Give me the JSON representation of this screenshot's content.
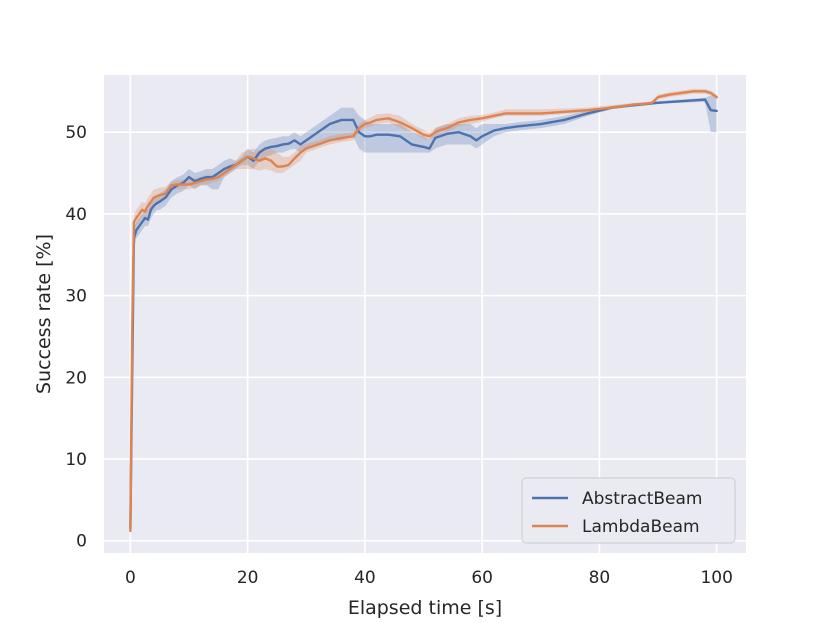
{
  "chart_data": {
    "type": "line",
    "title": "",
    "xlabel": "Elapsed time [s]",
    "ylabel": "Success rate [%]",
    "xlim": [
      -4.5,
      105
    ],
    "ylim": [
      -1.5,
      57
    ],
    "xticks": [
      0,
      20,
      40,
      60,
      80,
      100
    ],
    "yticks": [
      0,
      10,
      20,
      30,
      40,
      50
    ],
    "grid": true,
    "background_color": "#eaeaf2",
    "legend_position": "lower-right",
    "series": [
      {
        "name": "AbstractBeam",
        "color": "#4c72b0",
        "x": [
          0,
          0.3,
          0.6,
          1,
          1.5,
          2,
          2.5,
          3,
          3.5,
          4,
          4.5,
          5,
          6,
          7,
          8,
          9,
          10,
          11,
          12,
          13,
          14,
          15,
          16,
          17,
          18,
          19,
          20,
          21,
          22,
          23,
          24,
          25,
          26,
          27,
          28,
          29,
          30,
          32,
          34,
          36,
          38,
          39,
          40,
          41,
          42,
          44,
          46,
          48,
          50,
          51,
          52,
          54,
          56,
          58,
          59,
          60,
          62,
          64,
          66,
          70,
          74,
          78,
          82,
          86,
          90,
          94,
          98,
          99,
          100
        ],
        "y": [
          1.5,
          20,
          37,
          38,
          38.5,
          39,
          39.5,
          39.3,
          40.5,
          41,
          41.3,
          41.5,
          42,
          43,
          43.5,
          43.8,
          44.5,
          44,
          44.3,
          44.5,
          44.5,
          45,
          45.5,
          45.8,
          46,
          46.5,
          47,
          46.5,
          47.5,
          48,
          48.2,
          48.3,
          48.5,
          48.6,
          49,
          48.5,
          49,
          50,
          51,
          51.5,
          51.5,
          50,
          49.5,
          49.5,
          49.7,
          49.7,
          49.5,
          48.5,
          48.2,
          48,
          49.3,
          49.8,
          50,
          49.5,
          49,
          49.5,
          50.2,
          50.5,
          50.7,
          51,
          51.5,
          52.3,
          53,
          53.3,
          53.6,
          53.8,
          54,
          52.7,
          52.6
        ],
        "band_lower": [
          0,
          14,
          35.5,
          37,
          37.5,
          38,
          38.5,
          38.5,
          39.5,
          40,
          40.5,
          40.5,
          41,
          42,
          42.5,
          42.8,
          43.5,
          43,
          43.5,
          43.5,
          43,
          43,
          44.5,
          45,
          45.5,
          46,
          46,
          45.5,
          46.5,
          47,
          47.2,
          47.5,
          47.5,
          47.8,
          48,
          47.5,
          48,
          48.5,
          49,
          49,
          49.5,
          48,
          47.5,
          47.5,
          47.5,
          47.5,
          47.5,
          47.5,
          47.5,
          47.5,
          48,
          48.5,
          48.5,
          48.5,
          48,
          48.5,
          49.5,
          50,
          50.2,
          50.5,
          51,
          52,
          52.8,
          53.2,
          53.5,
          53.6,
          53.7,
          50,
          50
        ],
        "band_upper": [
          3,
          25,
          38.5,
          39,
          39.5,
          40,
          40.5,
          40.5,
          41.5,
          42,
          42.3,
          42.5,
          43,
          44,
          44.5,
          44.8,
          45.5,
          45,
          45.2,
          45.5,
          45.5,
          46,
          46.5,
          46.8,
          46.5,
          47,
          48,
          47.5,
          48.5,
          49,
          49.2,
          49.3,
          49.5,
          49.5,
          50,
          49.5,
          50,
          51,
          52,
          53,
          53,
          52,
          51.5,
          51,
          51,
          51,
          51,
          50,
          49.5,
          49,
          50.5,
          51,
          51,
          51,
          50.5,
          51,
          51,
          51,
          51.2,
          51.5,
          52,
          52.6,
          53.2,
          53.5,
          53.8,
          54,
          54.2,
          54.5,
          54.5
        ]
      },
      {
        "name": "LambdaBeam",
        "color": "#dd8452",
        "x": [
          0,
          0.3,
          0.6,
          1,
          1.5,
          2,
          2.5,
          3,
          3.5,
          4,
          5,
          6,
          7,
          8,
          9,
          10,
          11,
          12,
          13,
          14,
          15,
          16,
          17,
          18,
          19,
          20,
          21,
          22,
          23,
          24,
          25,
          26,
          27,
          28,
          29,
          30,
          32,
          34,
          36,
          38,
          39,
          40,
          41,
          42,
          44,
          46,
          48,
          50,
          51,
          52,
          53,
          54,
          56,
          58,
          60,
          62,
          64,
          66,
          70,
          74,
          78,
          82,
          86,
          88,
          89,
          90,
          92,
          94,
          96,
          98,
          99,
          100
        ],
        "y": [
          1.2,
          25,
          39,
          39.5,
          40,
          40.5,
          40.3,
          41,
          41.5,
          42,
          42.3,
          42.5,
          43.5,
          43.6,
          43.6,
          43.6,
          43.8,
          44,
          44.2,
          44.3,
          44.5,
          45,
          45.5,
          46,
          46.5,
          47,
          46.8,
          46.5,
          46.8,
          46.5,
          45.8,
          45.8,
          46,
          46.8,
          47.5,
          48,
          48.5,
          49,
          49.3,
          49.5,
          50.5,
          51,
          51.2,
          51.5,
          51.7,
          51.2,
          50.5,
          49.7,
          49.5,
          50,
          50.3,
          50.5,
          51.2,
          51.5,
          51.7,
          52,
          52.3,
          52.3,
          52.3,
          52.5,
          52.7,
          53,
          53.4,
          53.5,
          53.6,
          54.3,
          54.6,
          54.8,
          55,
          55,
          54.8,
          54.3
        ],
        "band_lower": [
          0,
          20,
          38,
          38.5,
          39,
          39.5,
          39.5,
          40,
          40.5,
          41,
          41.5,
          42,
          43,
          43,
          43,
          43,
          43.2,
          43.5,
          43.6,
          43.8,
          44,
          44.5,
          45,
          45.5,
          45.5,
          45.5,
          45.5,
          45.3,
          45.5,
          45.3,
          45,
          45,
          45.5,
          46,
          46.5,
          47.5,
          48,
          48.5,
          48.8,
          49,
          50,
          50.5,
          50.7,
          51,
          51.2,
          50.5,
          50,
          49.2,
          49,
          49.5,
          49.8,
          50,
          50.7,
          51,
          51.3,
          51.7,
          52,
          52,
          52,
          52.2,
          52.4,
          52.8,
          53.2,
          53.3,
          53.4,
          54,
          54.3,
          54.5,
          54.7,
          54.7,
          54.5,
          54
        ],
        "band_upper": [
          2.5,
          30,
          40,
          40.5,
          41,
          41.5,
          41.3,
          42,
          42.5,
          43,
          43.2,
          43.3,
          44,
          44.2,
          44.2,
          44.2,
          44.4,
          44.5,
          44.8,
          44.8,
          45,
          45.5,
          46,
          46.5,
          47.5,
          47.8,
          48,
          47.8,
          48,
          48,
          47.5,
          47,
          47,
          47.5,
          48.3,
          48.6,
          49,
          49.5,
          49.8,
          50,
          51,
          51.5,
          51.8,
          52.2,
          52.3,
          52,
          51,
          50.3,
          50,
          50.5,
          50.8,
          51,
          51.7,
          52,
          52.1,
          52.4,
          52.8,
          52.8,
          52.8,
          52.9,
          53,
          53.3,
          53.6,
          53.7,
          53.8,
          54.6,
          54.9,
          55.1,
          55.3,
          55.3,
          55.1,
          54.6
        ]
      }
    ]
  }
}
